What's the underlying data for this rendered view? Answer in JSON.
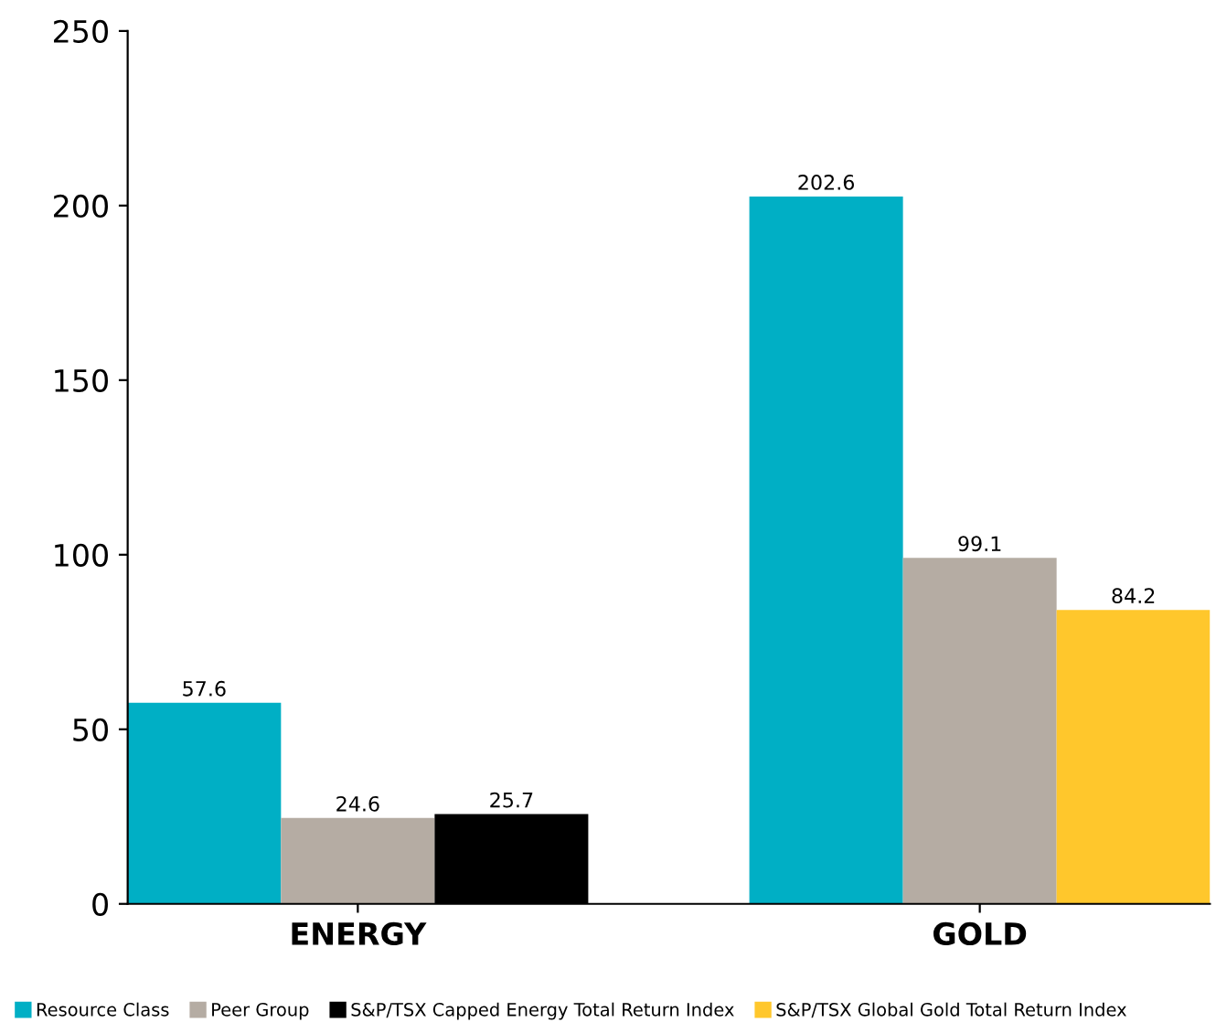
{
  "chart_data": {
    "type": "bar",
    "categories": [
      "ENERGY",
      "GOLD"
    ],
    "series": [
      {
        "name": "Resource Class",
        "color": "#00afc5",
        "values": [
          57.6,
          202.6
        ]
      },
      {
        "name": "Peer Group",
        "color": "#b5aca3",
        "values": [
          24.6,
          99.1
        ]
      },
      {
        "name": "S&P/TSX Capped Energy Total Return Index",
        "color": "#000000",
        "values": [
          25.7,
          null
        ]
      },
      {
        "name": "S&P/TSX Global Gold Total Return Index",
        "color": "#ffc72c",
        "values": [
          null,
          84.2
        ]
      }
    ],
    "ylim": [
      0,
      250
    ],
    "yticks": [
      0,
      50,
      100,
      150,
      200,
      250
    ],
    "grid": false,
    "legend": "bottom",
    "data_labels": true
  }
}
